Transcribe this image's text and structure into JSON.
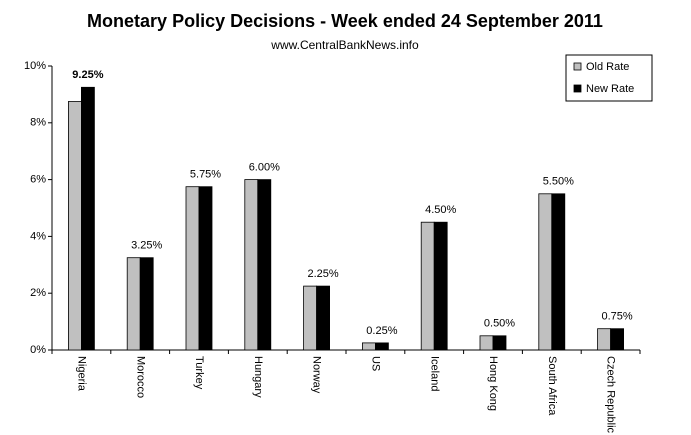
{
  "chart_data": {
    "type": "bar",
    "title": "Monetary Policy Decisions - Week ended 24 September 2011",
    "subtitle": "www.CentralBankNews.info",
    "categories": [
      "Nigeria",
      "Morocco",
      "Turkey",
      "Hungary",
      "Norway",
      "US",
      "Iceland",
      "Hong Kong",
      "South Africa",
      "Czech Republic"
    ],
    "series": [
      {
        "name": "Old Rate",
        "color": "#c0c0c0",
        "values": [
          8.75,
          3.25,
          5.75,
          6.0,
          2.25,
          0.25,
          4.5,
          0.5,
          5.5,
          0.75
        ]
      },
      {
        "name": "New Rate",
        "color": "#000000",
        "values": [
          9.25,
          3.25,
          5.75,
          6.0,
          2.25,
          0.25,
          4.5,
          0.5,
          5.5,
          0.75
        ],
        "value_labels": [
          "9.25%",
          "3.25%",
          "5.75%",
          "6.00%",
          "2.25%",
          "0.25%",
          "4.50%",
          "0.50%",
          "5.50%",
          "0.75%"
        ]
      }
    ],
    "ylim": [
      0,
      10
    ],
    "yticks": [
      {
        "value": 0,
        "label": "0%"
      },
      {
        "value": 2,
        "label": "2%"
      },
      {
        "value": 4,
        "label": "4%"
      },
      {
        "value": 6,
        "label": "6%"
      },
      {
        "value": 8,
        "label": "8%"
      },
      {
        "value": 10,
        "label": "10%"
      }
    ],
    "grid": false,
    "legend": "top-right"
  }
}
